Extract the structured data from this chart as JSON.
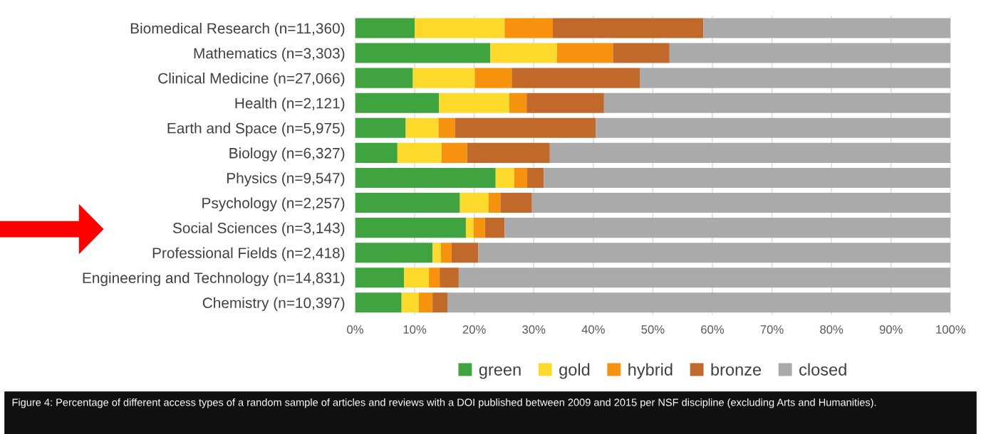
{
  "chart_data": {
    "type": "bar",
    "orientation": "horizontal",
    "stacked": true,
    "categories": [
      "Biomedical Research (n=11,360)",
      "Mathematics (n=3,303)",
      "Clinical Medicine (n=27,066)",
      "Health (n=2,121)",
      "Earth and Space (n=5,975)",
      "Biology (n=6,327)",
      "Physics (n=9,547)",
      "Psychology (n=2,257)",
      "Social Sciences (n=3,143)",
      "Professional Fields (n=2,418)",
      "Engineering and Technology (n=14,831)",
      "Chemistry (n=10,397)"
    ],
    "series": [
      {
        "name": "green",
        "color": "#3fa33f",
        "values": [
          10.0,
          22.7,
          9.7,
          14.1,
          8.5,
          7.1,
          23.6,
          17.6,
          18.6,
          13.0,
          8.2,
          7.8
        ]
      },
      {
        "name": "gold",
        "color": "#fcd92a",
        "values": [
          15.1,
          11.2,
          10.4,
          11.8,
          5.5,
          7.4,
          3.1,
          4.8,
          1.3,
          1.4,
          4.2,
          2.9
        ]
      },
      {
        "name": "hybrid",
        "color": "#f7920f",
        "values": [
          8.1,
          9.4,
          6.2,
          2.9,
          2.8,
          4.3,
          2.2,
          2.0,
          1.9,
          1.8,
          1.8,
          2.3
        ]
      },
      {
        "name": "bronze",
        "color": "#c0692a",
        "values": [
          25.3,
          9.5,
          21.5,
          13.0,
          23.6,
          13.9,
          2.8,
          5.3,
          3.3,
          4.5,
          3.2,
          2.5
        ]
      },
      {
        "name": "closed",
        "color": "#aaaaaa",
        "values": [
          41.5,
          47.2,
          52.2,
          58.2,
          59.6,
          67.3,
          68.3,
          70.3,
          74.9,
          79.3,
          82.6,
          84.5
        ]
      }
    ],
    "xlim": [
      0,
      100
    ],
    "xticks": [
      {
        "value": 0,
        "label": "0%"
      },
      {
        "value": 10,
        "label": "10%"
      },
      {
        "value": 20,
        "label": "20%"
      },
      {
        "value": 30,
        "label": "30%"
      },
      {
        "value": 40,
        "label": "40%"
      },
      {
        "value": 50,
        "label": "50%"
      },
      {
        "value": 60,
        "label": "60%"
      },
      {
        "value": 70,
        "label": "70%"
      },
      {
        "value": 80,
        "label": "80%"
      },
      {
        "value": 90,
        "label": "90%"
      },
      {
        "value": 100,
        "label": "100%"
      }
    ],
    "grid": "x",
    "legend": "bottom",
    "annotations": [
      "Figure 4: Percentage of different access types of a random sample of articles and reviews with a DOI published between 2009 and 2015 per NSF discipline (excluding Arts and Humanities)."
    ]
  }
}
